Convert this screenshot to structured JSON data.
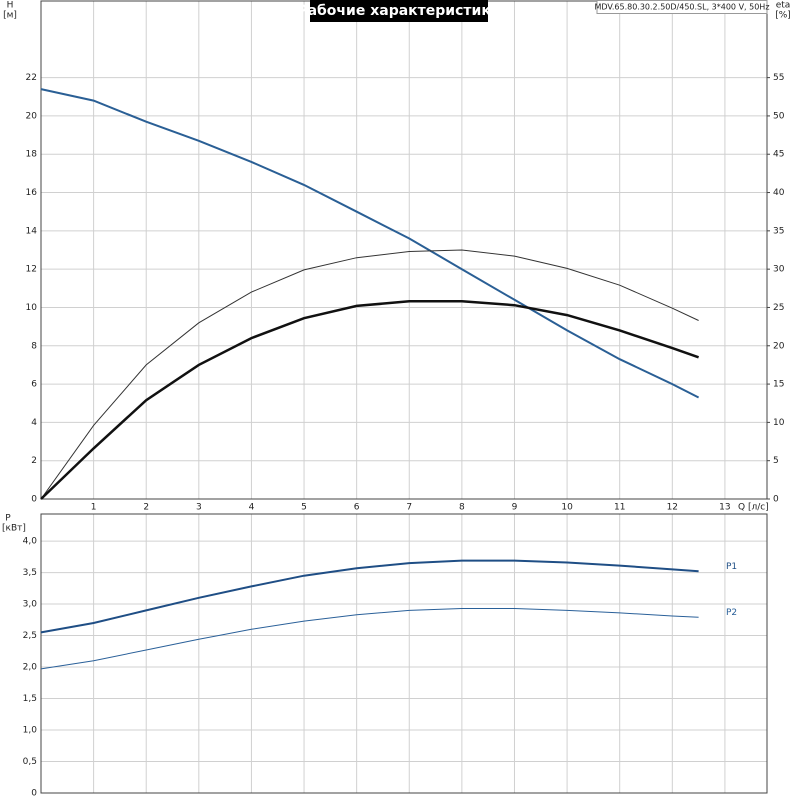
{
  "chart_data": [
    {
      "type": "line",
      "title": "Рабочие характеристики",
      "subtitle": "MDV.65.80.30.2.50D/450.SL, 3*400 V, 50Hz",
      "x_label": "Q [л/с]",
      "y_label": "H",
      "y_unit": "[м]",
      "y2_label": "eta",
      "y2_unit": "[%]",
      "x": [
        0,
        1,
        2,
        3,
        4,
        5,
        6,
        7,
        8,
        9,
        10,
        11,
        12,
        12.5
      ],
      "xlim": [
        0,
        13.8
      ],
      "xticks": [
        1,
        2,
        3,
        4,
        5,
        6,
        7,
        8,
        9,
        10,
        11,
        12,
        13
      ],
      "ylim": [
        0,
        26
      ],
      "yticks": [
        0,
        2,
        4,
        6,
        8,
        10,
        12,
        14,
        16,
        18,
        20,
        22
      ],
      "y2lim": [
        0,
        65
      ],
      "y2ticks": [
        0,
        5,
        10,
        15,
        20,
        25,
        30,
        35,
        40,
        45,
        50,
        55
      ],
      "grid": true,
      "series": [
        {
          "color": "#2a5f95",
          "width": 2,
          "values": [
            21.4,
            20.8,
            19.7,
            18.7,
            17.6,
            16.4,
            15.0,
            13.6,
            12.0,
            10.4,
            8.8,
            7.3,
            6.0,
            5.3
          ]
        },
        {
          "color": "#333333",
          "width": 1,
          "axis": "y2",
          "values": [
            0,
            9.6,
            17.5,
            23,
            27,
            29.9,
            31.5,
            32.3,
            32.5,
            31.7,
            30.1,
            27.9,
            24.9,
            23.3
          ]
        },
        {
          "color": "#111111",
          "width": 2.5,
          "axis": "y2",
          "values": [
            0,
            6.6,
            12.9,
            17.5,
            21,
            23.6,
            25.2,
            25.8,
            25.8,
            25.3,
            24,
            22,
            19.7,
            18.5
          ]
        }
      ]
    },
    {
      "type": "line",
      "y_label": "P",
      "y_unit": "[кВт]",
      "x": [
        0,
        1,
        2,
        3,
        4,
        5,
        6,
        7,
        8,
        9,
        10,
        11,
        12,
        12.5
      ],
      "xlim": [
        0,
        13.8
      ],
      "ylim": [
        0,
        4.43
      ],
      "yticks": [
        0,
        {
          "value": 0.5,
          "label": "0,5"
        },
        {
          "value": 1,
          "label": "1,0"
        },
        {
          "value": 1.5,
          "label": "1,5"
        },
        {
          "value": 2,
          "label": "2,0"
        },
        {
          "value": 2.5,
          "label": "2,5"
        },
        {
          "value": 3,
          "label": "3,0"
        },
        {
          "value": 3.5,
          "label": "3,5"
        },
        {
          "value": 4,
          "label": "4,0"
        }
      ],
      "grid": true,
      "series": [
        {
          "name": "P1",
          "color": "#1f4e85",
          "width": 2,
          "values": [
            2.55,
            2.7,
            2.9,
            3.1,
            3.28,
            3.45,
            3.57,
            3.65,
            3.69,
            3.69,
            3.66,
            3.61,
            3.55,
            3.52
          ]
        },
        {
          "name": "P2",
          "color": "#2a6099",
          "width": 1,
          "values": [
            1.97,
            2.1,
            2.27,
            2.44,
            2.6,
            2.73,
            2.83,
            2.9,
            2.93,
            2.93,
            2.9,
            2.86,
            2.81,
            2.79
          ]
        }
      ]
    }
  ]
}
